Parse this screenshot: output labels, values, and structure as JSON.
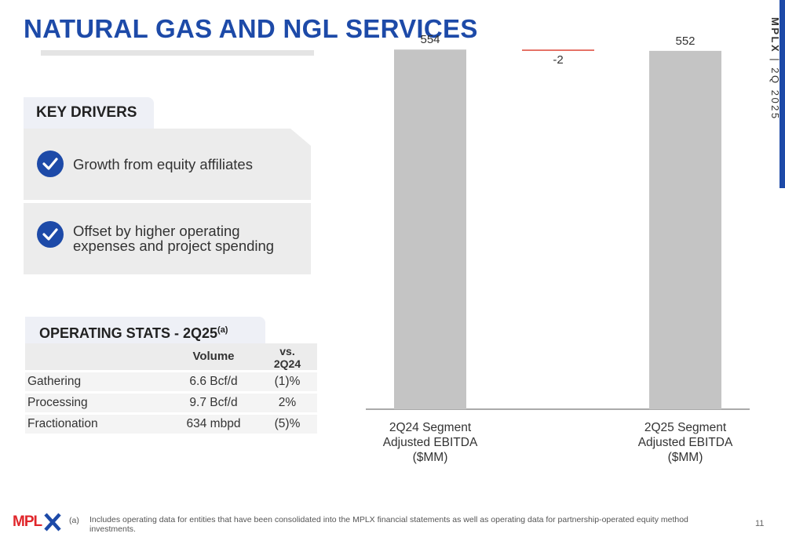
{
  "title": "NATURAL GAS AND NGL SERVICES",
  "side_label": {
    "company": "MPLX",
    "separator": "|",
    "period": "2Q 2025"
  },
  "key_drivers": {
    "heading": "KEY DRIVERS",
    "items": [
      {
        "line1": "Growth from equity affiliates",
        "line2": ""
      },
      {
        "line1": "Offset by higher operating",
        "line2": "expenses and project spending"
      }
    ]
  },
  "operating_stats": {
    "heading": "OPERATING STATS - 2Q25",
    "heading_note": "(a)",
    "col_volume": "Volume",
    "col_vs_line1": "vs.",
    "col_vs_line2": "2Q24",
    "rows": [
      {
        "name": "Gathering",
        "volume": "6.6 Bcf/d",
        "change": "(1)%"
      },
      {
        "name": "Processing",
        "volume": "9.7 Bcf/d",
        "change": "2%"
      },
      {
        "name": "Fractionation",
        "volume": "634 mbpd",
        "change": "(5)%"
      }
    ]
  },
  "chart_data": {
    "type": "bar",
    "subtype": "waterfall",
    "categories": [
      "2Q24 Segment Adjusted EBITDA ($MM)",
      "",
      "2Q25 Segment Adjusted EBITDA ($MM)"
    ],
    "category_lines": [
      [
        "2Q24 Segment",
        "Adjusted EBITDA",
        "($MM)"
      ],
      [],
      [
        "2Q25 Segment",
        "Adjusted EBITDA",
        "($MM)"
      ]
    ],
    "values": [
      554,
      -2,
      552
    ],
    "labels": [
      "554",
      "-2",
      "552"
    ],
    "ylim": [
      0,
      575
    ],
    "colors": {
      "total": "#c4c4c4",
      "decrease": "#e0584a"
    }
  },
  "footnote": {
    "marker": "(a)",
    "text": "Includes operating data for entities that have been consolidated into the MPLX financial statements as well as operating data for partnership-operated equity method investments."
  },
  "logo_text": "MPLX",
  "page_number": "11",
  "colors": {
    "brand_blue": "#1d4aa8",
    "brand_red": "#e0262b",
    "panel_gray": "#ececec"
  }
}
